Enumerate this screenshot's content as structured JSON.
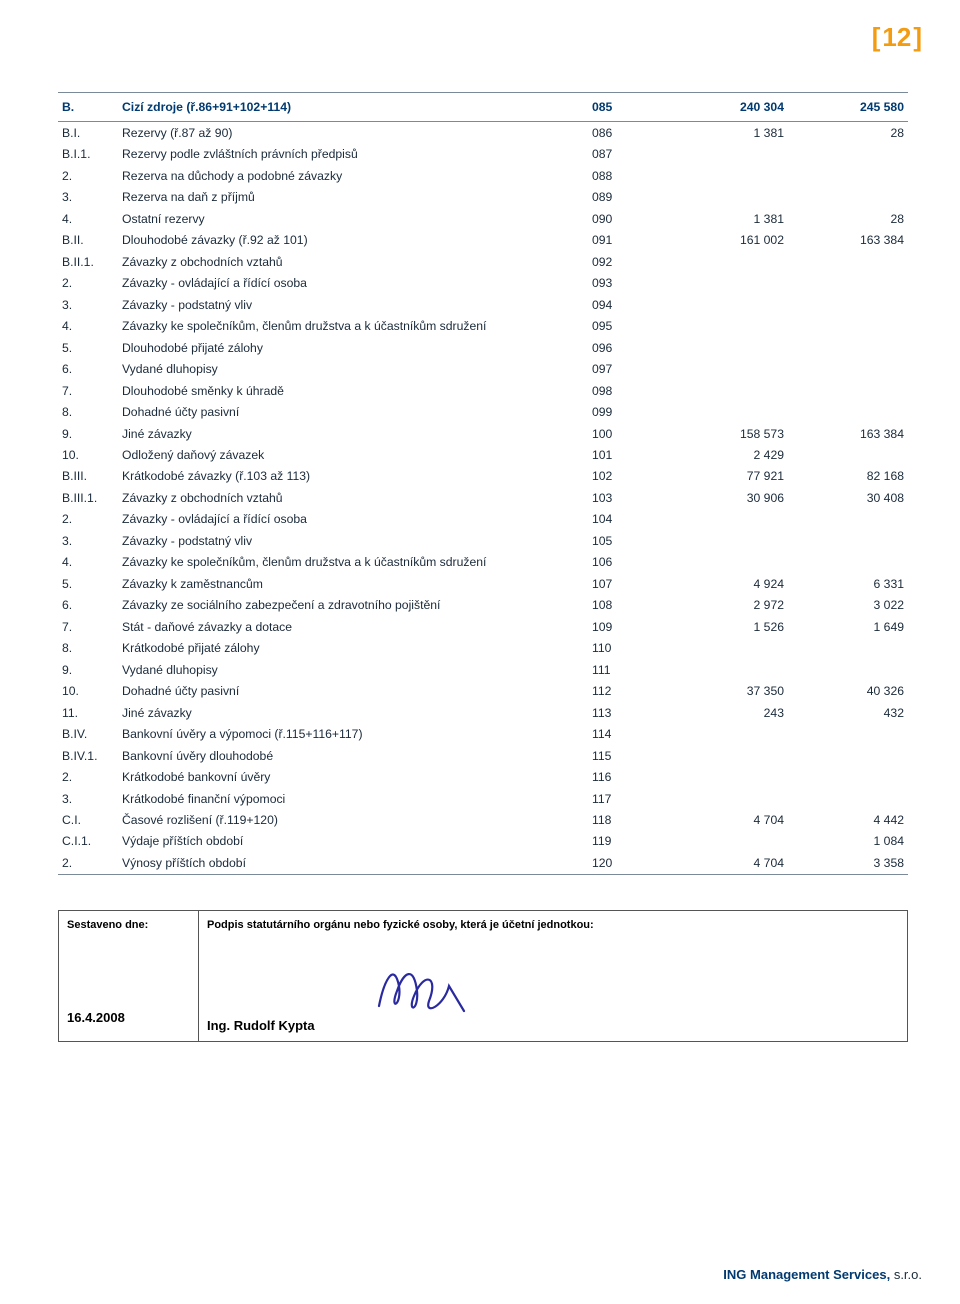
{
  "page_number": "12",
  "page_bracket_color": "#f39c12",
  "footer": {
    "company": "ING Management Services,",
    "suffix": "s.r.o."
  },
  "signature": {
    "left_label": "Sestaveno dne:",
    "date": "16.4.2008",
    "right_caption": "Podpis statutárního orgánu nebo fyzické osoby, která je  účetní  jednotkou:",
    "signer": "Ing. Rudolf Kypta"
  },
  "columns": [
    "idx",
    "label",
    "code",
    "val_prev",
    "val_curr"
  ],
  "rows": [
    {
      "idx": "B.",
      "label": "Cizí zdroje (ř.86+91+102+114)",
      "code": "085",
      "v1": "240 304",
      "v2": "245 580",
      "header": true,
      "topline": true,
      "botline": true
    },
    {
      "idx": "B.I.",
      "label": "Rezervy (ř.87 až 90)",
      "code": "086",
      "v1": "1 381",
      "v2": "28"
    },
    {
      "idx": "B.I.1.",
      "label": "Rezervy podle zvláštních právních předpisů",
      "code": "087",
      "v1": "",
      "v2": ""
    },
    {
      "idx": "2.",
      "label": "Rezerva na důchody a podobné závazky",
      "code": "088",
      "v1": "",
      "v2": ""
    },
    {
      "idx": "3.",
      "label": "Rezerva na daň z příjmů",
      "code": "089",
      "v1": "",
      "v2": ""
    },
    {
      "idx": "4.",
      "label": "Ostatní rezervy",
      "code": "090",
      "v1": "1 381",
      "v2": "28"
    },
    {
      "idx": "B.II.",
      "label": "Dlouhodobé závazky (ř.92 až 101)",
      "code": "091",
      "v1": "161 002",
      "v2": "163 384"
    },
    {
      "idx": "B.II.1.",
      "label": "Závazky z obchodních vztahů",
      "code": "092",
      "v1": "",
      "v2": ""
    },
    {
      "idx": "2.",
      "label": "Závazky - ovládající a řídící osoba",
      "code": "093",
      "v1": "",
      "v2": ""
    },
    {
      "idx": "3.",
      "label": "Závazky - podstatný vliv",
      "code": "094",
      "v1": "",
      "v2": ""
    },
    {
      "idx": "4.",
      "label": "Závazky ke společníkům, členům družstva a k účastníkům sdružení",
      "code": "095",
      "v1": "",
      "v2": ""
    },
    {
      "idx": "5.",
      "label": "Dlouhodobé přijaté zálohy",
      "code": "096",
      "v1": "",
      "v2": ""
    },
    {
      "idx": "6.",
      "label": "Vydané dluhopisy",
      "code": "097",
      "v1": "",
      "v2": ""
    },
    {
      "idx": "7.",
      "label": "Dlouhodobé směnky k úhradě",
      "code": "098",
      "v1": "",
      "v2": ""
    },
    {
      "idx": "8.",
      "label": "Dohadné účty pasivní",
      "code": "099",
      "v1": "",
      "v2": ""
    },
    {
      "idx": "9.",
      "label": "Jiné závazky",
      "code": "100",
      "v1": "158 573",
      "v2": "163 384"
    },
    {
      "idx": "10.",
      "label": "Odložený daňový závazek",
      "code": "101",
      "v1": "2 429",
      "v2": ""
    },
    {
      "idx": "B.III.",
      "label": "Krátkodobé závazky (ř.103 až 113)",
      "code": "102",
      "v1": "77 921",
      "v2": "82 168"
    },
    {
      "idx": "B.III.1.",
      "label": "Závazky z obchodních vztahů",
      "code": "103",
      "v1": "30 906",
      "v2": "30 408"
    },
    {
      "idx": "2.",
      "label": "Závazky - ovládající a řídící osoba",
      "code": "104",
      "v1": "",
      "v2": ""
    },
    {
      "idx": "3.",
      "label": "Závazky - podstatný vliv",
      "code": "105",
      "v1": "",
      "v2": ""
    },
    {
      "idx": "4.",
      "label": "Závazky ke společníkům, členům družstva a k účastníkům sdružení",
      "code": "106",
      "v1": "",
      "v2": ""
    },
    {
      "idx": "5.",
      "label": "Závazky k zaměstnancům",
      "code": "107",
      "v1": "4 924",
      "v2": "6 331"
    },
    {
      "idx": "6.",
      "label": "Závazky ze sociálního zabezpečení a zdravotního pojištění",
      "code": "108",
      "v1": "2 972",
      "v2": "3 022"
    },
    {
      "idx": "7.",
      "label": "Stát - daňové závazky a dotace",
      "code": "109",
      "v1": "1 526",
      "v2": "1 649"
    },
    {
      "idx": "8.",
      "label": "Krátkodobé přijaté zálohy",
      "code": "110",
      "v1": "",
      "v2": ""
    },
    {
      "idx": "9.",
      "label": "Vydané dluhopisy",
      "code": "111",
      "v1": "",
      "v2": ""
    },
    {
      "idx": "10.",
      "label": "Dohadné účty pasivní",
      "code": "112",
      "v1": "37 350",
      "v2": "40 326"
    },
    {
      "idx": "11.",
      "label": "Jiné závazky",
      "code": "113",
      "v1": "243",
      "v2": "432"
    },
    {
      "idx": "B.IV.",
      "label": "Bankovní úvěry a výpomoci (ř.115+116+117)",
      "code": "114",
      "v1": "",
      "v2": ""
    },
    {
      "idx": "B.IV.1.",
      "label": "Bankovní úvěry dlouhodobé",
      "code": "115",
      "v1": "",
      "v2": ""
    },
    {
      "idx": "2.",
      "label": "Krátkodobé bankovní úvěry",
      "code": "116",
      "v1": "",
      "v2": ""
    },
    {
      "idx": "3.",
      "label": "Krátkodobé finanční výpomoci",
      "code": "117",
      "v1": "",
      "v2": ""
    },
    {
      "idx": "C.I.",
      "label": "Časové rozlišení (ř.119+120)",
      "code": "118",
      "v1": "4 704",
      "v2": "4 442"
    },
    {
      "idx": "C.I.1.",
      "label": "Výdaje příštích období",
      "code": "119",
      "v1": "",
      "v2": "1 084"
    },
    {
      "idx": "2.",
      "label": "Výnosy příštích období",
      "code": "120",
      "v1": "4 704",
      "v2": "3 358",
      "botline": true
    }
  ],
  "styling": {
    "text_color": "#1a2a3a",
    "heading_color": "#003a70",
    "rule_color": "#7a8a99",
    "accent_color": "#f39c12",
    "background": "#ffffff",
    "font_size_pt": 9,
    "header_font_weight": 700
  }
}
